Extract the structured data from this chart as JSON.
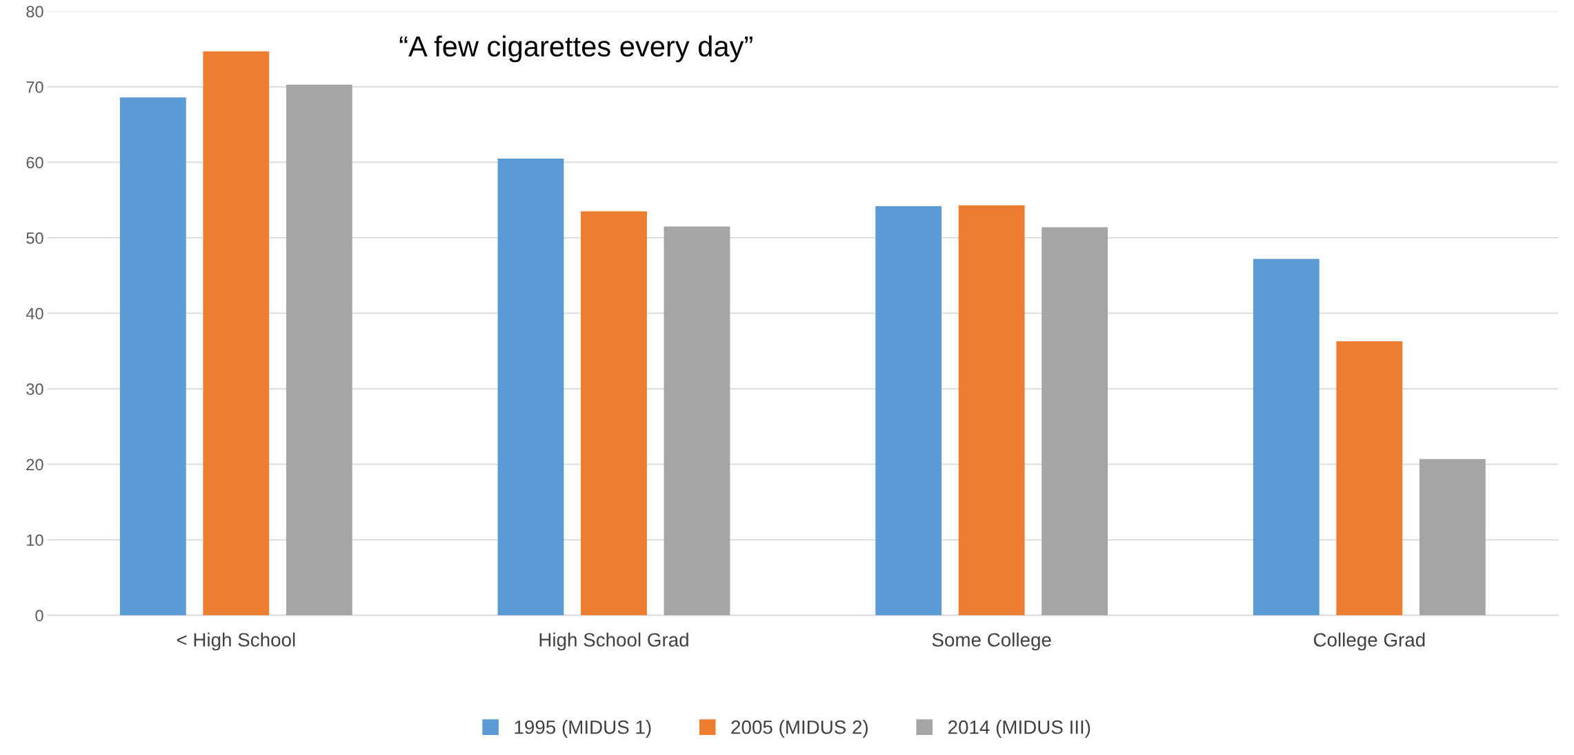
{
  "chart_data": {
    "type": "bar",
    "title": "“A few cigarettes every day”",
    "categories": [
      "< High School",
      "High School Grad",
      "Some College",
      "College Grad"
    ],
    "series": [
      {
        "name": "1995 (MIDUS 1)",
        "color": "#5b9bd5",
        "values": [
          68.6,
          60.5,
          54.2,
          47.2
        ]
      },
      {
        "name": "2005 (MIDUS 2)",
        "color": "#ed7d31",
        "values": [
          74.7,
          53.5,
          54.3,
          36.3
        ]
      },
      {
        "name": "2014 (MIDUS III)",
        "color": "#a5a5a5",
        "values": [
          70.3,
          51.5,
          51.4,
          20.7
        ]
      }
    ],
    "ylim": [
      0,
      80
    ],
    "yticks": [
      0,
      10,
      20,
      30,
      40,
      50,
      60,
      70,
      80
    ],
    "grid": "y",
    "legend": "bottom"
  }
}
